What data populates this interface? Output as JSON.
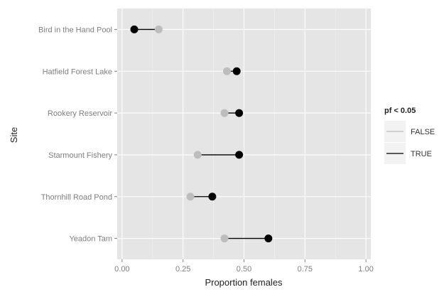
{
  "chart_data": {
    "type": "dot-line",
    "title": "",
    "xlabel": "Proportion females",
    "ylabel": "Site",
    "xlim": [
      -0.02,
      1.02
    ],
    "xticks": [
      0.0,
      0.25,
      0.5,
      0.75,
      1.0
    ],
    "xtick_labels": [
      "0.00",
      "0.25",
      "0.50",
      "0.75",
      "1.00"
    ],
    "categories": [
      "Bird in the Hand Pool",
      "Hatfield Forest Lake",
      "Rookery Reservoir",
      "Starmount Fishery",
      "Thornhill Road Pond",
      "Yeadon Tam"
    ],
    "series": [
      {
        "name": "FALSE",
        "values": [
          0.15,
          0.43,
          0.42,
          0.31,
          0.28,
          0.42
        ]
      },
      {
        "name": "TRUE",
        "values": [
          0.05,
          0.47,
          0.48,
          0.48,
          0.37,
          0.6
        ]
      }
    ],
    "segments_series": "TRUE",
    "legend": {
      "title": "pf < 0.05",
      "entries": [
        "FALSE",
        "TRUE"
      ],
      "position": "right"
    },
    "colors": {
      "panel_bg": "#e5e5e5",
      "grid_major": "#ffffff",
      "grid_minor": "#f0f0f0",
      "false_color": "#bdbdbd",
      "true_color": "#000000"
    },
    "grid": true
  }
}
